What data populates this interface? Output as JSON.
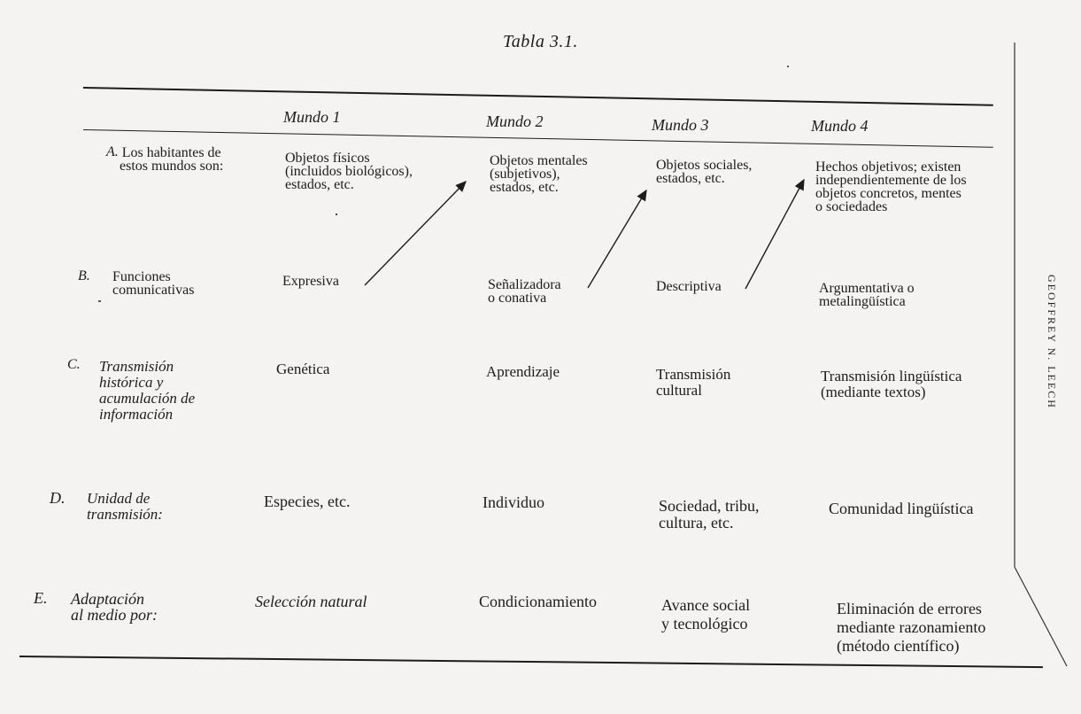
{
  "caption": "Tabla 3.1.",
  "headers": [
    "Mundo 1",
    "Mundo 2",
    "Mundo 3",
    "Mundo 4"
  ],
  "rows": [
    {
      "letter": "A.",
      "label": "Los habitantes de\nestos mundos son:",
      "cells": [
        "Objetos físicos\n(incluidos biológicos),\nestados, etc.",
        "Objetos mentales\n(subjetivos),\nestados, etc.",
        "Objetos sociales,\nestados, etc.",
        "Hechos objetivos; existen\nindependientemente de los\nobjetos concretos, mentes\no sociedades"
      ]
    },
    {
      "letter": "B.",
      "label": "Funciones\ncomunicativas",
      "cells": [
        "Expresiva",
        "Señalizadora\no conativa",
        "Descriptiva",
        "Argumentativa o\nmetalingüística"
      ]
    },
    {
      "letter": "C.",
      "label": "Transmisión\nhistórica y\nacumulación de\ninformación",
      "cells": [
        "Genética",
        "Aprendizaje",
        "Transmisión\ncultural",
        "Transmisión lingüística\n(mediante textos)"
      ]
    },
    {
      "letter": "D.",
      "label": "Unidad de\ntransmisión:",
      "cells": [
        "Especies, etc.",
        "Individuo",
        "Sociedad, tribu,\ncultura, etc.",
        "Comunidad lingüística"
      ]
    },
    {
      "letter": "E.",
      "label": "Adaptación\nal medio por:",
      "cells": [
        "Selección natural",
        "Condicionamiento",
        "Avance social\ny tecnológico",
        "Eliminación de errores\nmediante razonamiento\n(método científico)"
      ]
    }
  ],
  "side_text": "GEOFFREY N. LEECH"
}
